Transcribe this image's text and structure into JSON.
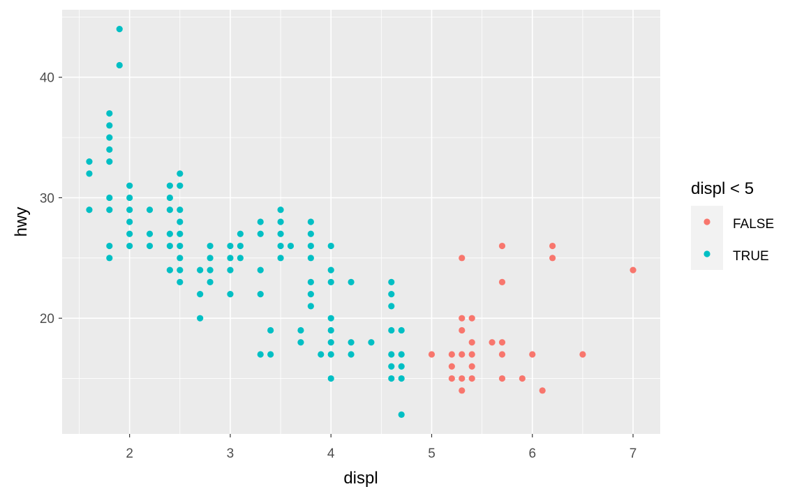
{
  "chart_data": {
    "type": "scatter",
    "title": "",
    "xlabel": "displ",
    "ylabel": "hwy",
    "xlim": [
      1.33,
      7.27
    ],
    "ylim": [
      10.4,
      45.6
    ],
    "x_ticks": [
      2,
      3,
      4,
      5,
      6,
      7
    ],
    "y_ticks": [
      20,
      30,
      40
    ],
    "grid": true,
    "legend": {
      "title": "displ < 5",
      "position": "right",
      "entries": [
        {
          "label": "FALSE",
          "color": "#F8766D"
        },
        {
          "label": "TRUE",
          "color": "#00BFC4"
        }
      ]
    },
    "series": [
      {
        "name": "FALSE",
        "color": "#F8766D",
        "points": [
          [
            5.0,
            17
          ],
          [
            5.2,
            17
          ],
          [
            5.2,
            16
          ],
          [
            5.2,
            15
          ],
          [
            5.3,
            25
          ],
          [
            5.3,
            20
          ],
          [
            5.3,
            19
          ],
          [
            5.3,
            17
          ],
          [
            5.3,
            15
          ],
          [
            5.3,
            14
          ],
          [
            5.4,
            20
          ],
          [
            5.4,
            18
          ],
          [
            5.4,
            17
          ],
          [
            5.4,
            16
          ],
          [
            5.4,
            15
          ],
          [
            5.6,
            18
          ],
          [
            5.7,
            26
          ],
          [
            5.7,
            23
          ],
          [
            5.7,
            18
          ],
          [
            5.7,
            17
          ],
          [
            5.7,
            15
          ],
          [
            5.9,
            15
          ],
          [
            6.0,
            17
          ],
          [
            6.1,
            14
          ],
          [
            6.2,
            26
          ],
          [
            6.2,
            25
          ],
          [
            6.5,
            17
          ],
          [
            7.0,
            24
          ]
        ]
      },
      {
        "name": "TRUE",
        "color": "#00BFC4",
        "points": [
          [
            1.6,
            33
          ],
          [
            1.6,
            32
          ],
          [
            1.6,
            29
          ],
          [
            1.8,
            37
          ],
          [
            1.8,
            36
          ],
          [
            1.8,
            35
          ],
          [
            1.8,
            34
          ],
          [
            1.8,
            33
          ],
          [
            1.8,
            30
          ],
          [
            1.8,
            29
          ],
          [
            1.8,
            26
          ],
          [
            1.8,
            25
          ],
          [
            1.9,
            44
          ],
          [
            1.9,
            41
          ],
          [
            2.0,
            31
          ],
          [
            2.0,
            30
          ],
          [
            2.0,
            29
          ],
          [
            2.0,
            28
          ],
          [
            2.0,
            27
          ],
          [
            2.0,
            26
          ],
          [
            2.2,
            29
          ],
          [
            2.2,
            27
          ],
          [
            2.2,
            26
          ],
          [
            2.4,
            31
          ],
          [
            2.4,
            30
          ],
          [
            2.4,
            29
          ],
          [
            2.4,
            27
          ],
          [
            2.4,
            26
          ],
          [
            2.4,
            24
          ],
          [
            2.5,
            32
          ],
          [
            2.5,
            31
          ],
          [
            2.5,
            29
          ],
          [
            2.5,
            28
          ],
          [
            2.5,
            27
          ],
          [
            2.5,
            26
          ],
          [
            2.5,
            25
          ],
          [
            2.5,
            24
          ],
          [
            2.5,
            23
          ],
          [
            2.7,
            24
          ],
          [
            2.7,
            22
          ],
          [
            2.7,
            20
          ],
          [
            2.8,
            26
          ],
          [
            2.8,
            25
          ],
          [
            2.8,
            24
          ],
          [
            2.8,
            23
          ],
          [
            3.0,
            26
          ],
          [
            3.0,
            25
          ],
          [
            3.0,
            24
          ],
          [
            3.0,
            22
          ],
          [
            3.1,
            27
          ],
          [
            3.1,
            26
          ],
          [
            3.1,
            25
          ],
          [
            3.3,
            28
          ],
          [
            3.3,
            27
          ],
          [
            3.3,
            24
          ],
          [
            3.3,
            22
          ],
          [
            3.3,
            17
          ],
          [
            3.4,
            19
          ],
          [
            3.4,
            17
          ],
          [
            3.5,
            29
          ],
          [
            3.5,
            28
          ],
          [
            3.5,
            27
          ],
          [
            3.5,
            26
          ],
          [
            3.5,
            25
          ],
          [
            3.6,
            26
          ],
          [
            3.7,
            19
          ],
          [
            3.7,
            18
          ],
          [
            3.8,
            28
          ],
          [
            3.8,
            27
          ],
          [
            3.8,
            26
          ],
          [
            3.8,
            25
          ],
          [
            3.8,
            23
          ],
          [
            3.8,
            22
          ],
          [
            3.8,
            21
          ],
          [
            3.9,
            17
          ],
          [
            4.0,
            26
          ],
          [
            4.0,
            24
          ],
          [
            4.0,
            23
          ],
          [
            4.0,
            20
          ],
          [
            4.0,
            19
          ],
          [
            4.0,
            18
          ],
          [
            4.0,
            17
          ],
          [
            4.0,
            15
          ],
          [
            4.2,
            23
          ],
          [
            4.2,
            18
          ],
          [
            4.2,
            17
          ],
          [
            4.4,
            18
          ],
          [
            4.6,
            23
          ],
          [
            4.6,
            22
          ],
          [
            4.6,
            21
          ],
          [
            4.6,
            19
          ],
          [
            4.6,
            17
          ],
          [
            4.6,
            16
          ],
          [
            4.6,
            15
          ],
          [
            4.7,
            19
          ],
          [
            4.7,
            17
          ],
          [
            4.7,
            16
          ],
          [
            4.7,
            15
          ],
          [
            4.7,
            12
          ]
        ]
      }
    ]
  },
  "palette": {
    "panel_background": "#EBEBEB",
    "grid_major": "#FFFFFF",
    "legend_key_background": "#F2F2F2"
  }
}
